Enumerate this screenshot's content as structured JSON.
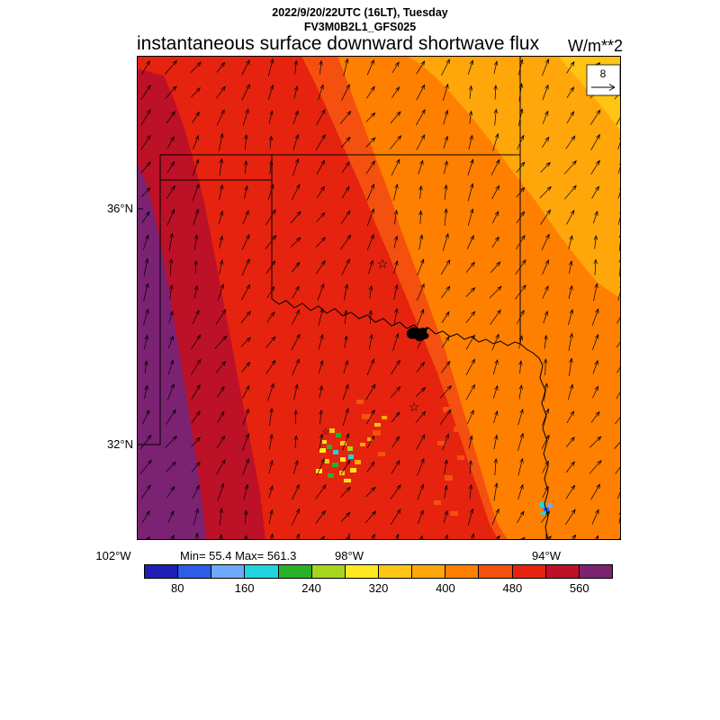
{
  "header": {
    "datetime": "2022/9/20/22UTC (16LT), Tuesday",
    "model": "FV3M0B2L1_GFS025",
    "title": "instantaneous surface downward shortwave flux",
    "units": "W/m**2"
  },
  "map": {
    "ref_vector_label": "8",
    "lat_labels": [
      "36°N",
      "32°N"
    ],
    "lon_labels": [
      "102°W",
      "98°W",
      "94°W"
    ],
    "stats": "Min= 55.4 Max= 561.3"
  },
  "chart_data": {
    "type": "heatmap",
    "title": "instantaneous surface downward shortwave flux",
    "valid_time": "2022/9/20/22UTC (16LT), Tuesday",
    "model_run": "FV3M0B2L1_GFS025",
    "units": "W/m**2",
    "min_value": 55.4,
    "max_value": 561.3,
    "lat_ticks": [
      "36°N",
      "32°N"
    ],
    "lon_ticks": [
      "102°W",
      "98°W",
      "94°W"
    ],
    "colorbar": {
      "levels": [
        40,
        80,
        120,
        160,
        200,
        240,
        280,
        320,
        360,
        400,
        440,
        480,
        520,
        560,
        600
      ],
      "tick_labels": [
        "80",
        "160",
        "240",
        "320",
        "400",
        "480",
        "560"
      ],
      "colors": [
        "#1f1fb4",
        "#2d5ce6",
        "#6ca9ff",
        "#1fd3e0",
        "#27b22a",
        "#a7d41e",
        "#ffe81f",
        "#ffc414",
        "#ffa60a",
        "#ff7f00",
        "#f4500f",
        "#e6230f",
        "#bd1128",
        "#7c2272"
      ]
    },
    "regions": [
      {
        "value_range": [
          560,
          600
        ],
        "color": "#7c2272",
        "location": "strip along far west edge"
      },
      {
        "value_range": [
          520,
          560
        ],
        "color": "#bd1128",
        "location": "western band"
      },
      {
        "value_range": [
          480,
          520
        ],
        "color": "#e6230f",
        "location": "west-central diagonal band"
      },
      {
        "value_range": [
          400,
          480
        ],
        "color": "#ff7f00",
        "location": "central and eastern area"
      },
      {
        "value_range": [
          320,
          400
        ],
        "color": "#ffa60a",
        "location": "northeast corner"
      },
      {
        "value_range": [
          80,
          240
        ],
        "color": "mixed green/cyan/yellow",
        "location": "cloud-reduced patches in west-central Texas and far southeast"
      }
    ],
    "wind_vectors": {
      "reference_value": 8,
      "direction": "southerly flow, arrows point north to northeast"
    }
  }
}
